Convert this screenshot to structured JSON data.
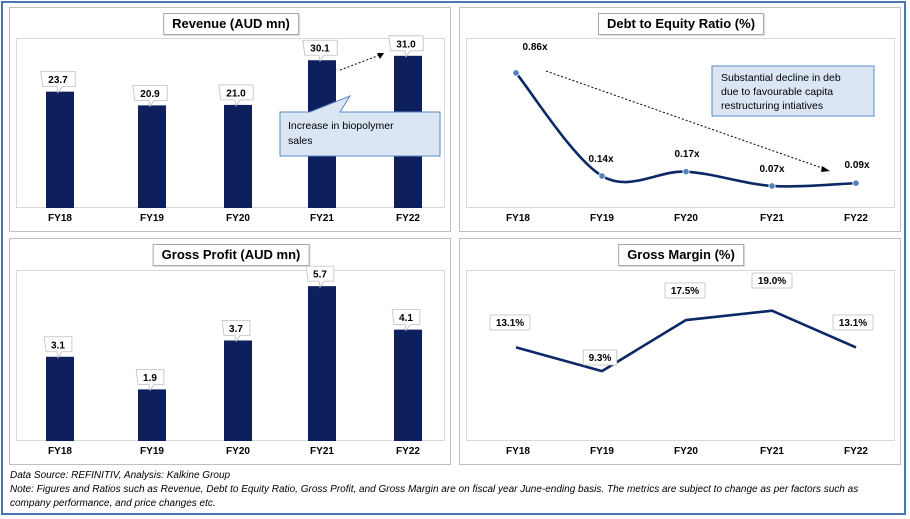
{
  "footer": {
    "source": "Data Source: REFINITIV, Analysis: Kalkine Group",
    "note": "Note: Figures and Ratios such as Revenue, Debt to Equity Ratio, Gross Profit, and Gross Margin are on fiscal year June-ending basis. The metrics are subject to change as per factors such as company performance, and price changes etc."
  },
  "colors": {
    "bar": "#0d1f5c",
    "line": "#0d2866",
    "marker": "#4f81bd",
    "callout_fill": "#dbe6f4",
    "callout_border": "#5b88c4"
  },
  "chart_data": [
    {
      "type": "bar",
      "title": "Revenue (AUD mn)",
      "categories": [
        "FY18",
        "FY19",
        "FY20",
        "FY21",
        "FY22"
      ],
      "values": [
        23.7,
        20.9,
        21.0,
        30.1,
        31.0
      ],
      "labels": [
        "23.7",
        "20.9",
        "21.0",
        "30.1",
        "31.0"
      ],
      "ylim": [
        0,
        33
      ],
      "annotation": "Increase in biopolymer sales",
      "annotation_arrow": {
        "from": "FY21",
        "to": "FY22"
      }
    },
    {
      "type": "line",
      "title": "Debt to Equity Ratio (%)",
      "categories": [
        "FY18",
        "FY19",
        "FY20",
        "FY21",
        "FY22"
      ],
      "values": [
        0.86,
        0.14,
        0.17,
        0.07,
        0.09
      ],
      "labels": [
        "0.86x",
        "0.14x",
        "0.17x",
        "0.07x",
        "0.09x"
      ],
      "ylim": [
        0,
        0.95
      ],
      "smooth": true,
      "annotation": "Substantial decline in debt due to favourable capital restructuring intiatives",
      "annotation_arrow": {
        "from": "FY18",
        "to": "FY22"
      }
    },
    {
      "type": "bar",
      "title": "Gross Profit (AUD mn)",
      "categories": [
        "FY18",
        "FY19",
        "FY20",
        "FY21",
        "FY22"
      ],
      "values": [
        3.1,
        1.9,
        3.7,
        5.7,
        4.1
      ],
      "labels": [
        "3.1",
        "1.9",
        "3.7",
        "5.7",
        "4.1"
      ],
      "ylim": [
        0,
        6
      ]
    },
    {
      "type": "line",
      "title": "Gross Margin (%)",
      "categories": [
        "FY18",
        "FY19",
        "FY20",
        "FY21",
        "FY22"
      ],
      "values": [
        13.1,
        9.3,
        17.5,
        19.0,
        13.1
      ],
      "labels": [
        "13.1%",
        "9.3%",
        "17.5%",
        "19.0%",
        "13.1%"
      ],
      "ylim": [
        0,
        22
      ],
      "smooth": false
    }
  ]
}
